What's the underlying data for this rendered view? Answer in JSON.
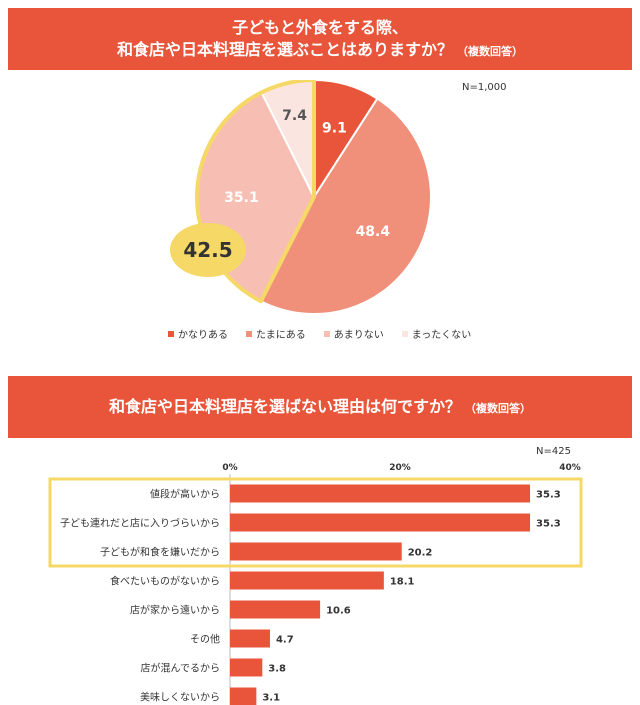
{
  "pie_section": {
    "title_line1": "子どもと外食をする際、",
    "title_line2": "和食店や日本料理店を選ぶことはありますか？",
    "title_note": "（複数回答）",
    "n_label": "N=1,000",
    "highlight_value": "42.5",
    "highlight_color": "#f5d866"
  },
  "bar_section": {
    "title": "和食店や日本料理店を選ばない理由は何ですか？",
    "title_note": "（複数回答）",
    "n_label": "N=425",
    "highlight_color": "#f5d866"
  },
  "chart_data": [
    {
      "type": "pie",
      "categories": [
        "かなりある",
        "たまにある",
        "あまりない",
        "まったくない"
      ],
      "values": [
        9.1,
        48.4,
        35.1,
        7.4
      ],
      "colors": [
        "#e8553a",
        "#f0907a",
        "#f7bfb3",
        "#fbe5e0"
      ],
      "legend_position": "bottom"
    },
    {
      "type": "bar",
      "orientation": "horizontal",
      "categories": [
        "値段が高いから",
        "子ども連れだと店に入りづらいから",
        "子どもが和食を嫌いだから",
        "食べたいものがないから",
        "店が家から遠いから",
        "その他",
        "店が混んでるから",
        "美味しくないから"
      ],
      "values": [
        35.3,
        35.3,
        20.2,
        18.1,
        10.6,
        4.7,
        3.8,
        3.1
      ],
      "xlim": [
        0,
        40
      ],
      "xticks": [
        "0%",
        "20%",
        "40%"
      ],
      "bar_color": "#e8553a",
      "highlighted_rows": 3
    }
  ]
}
